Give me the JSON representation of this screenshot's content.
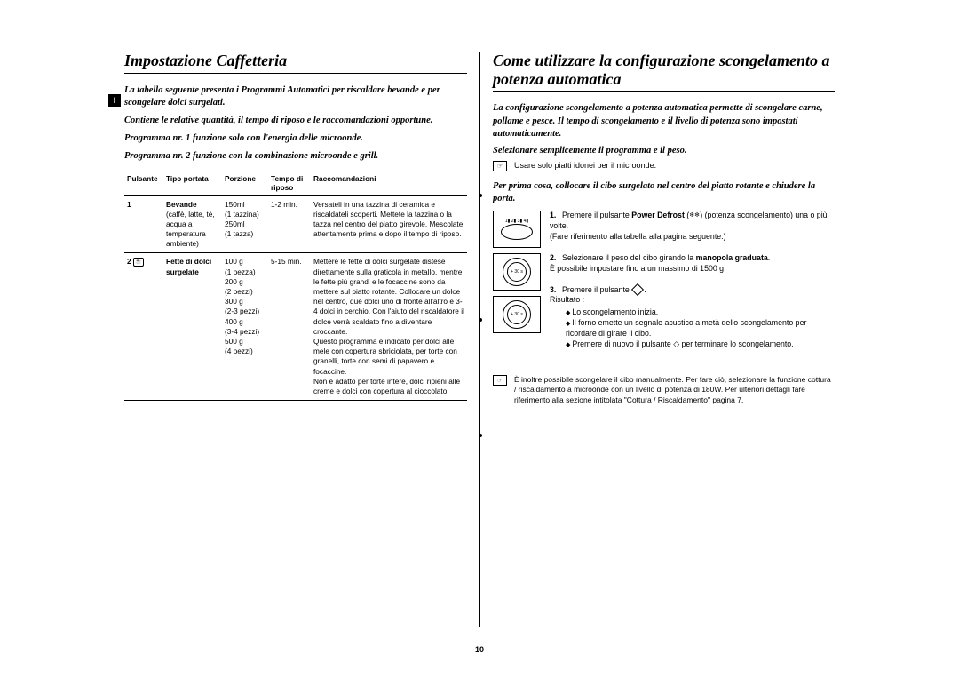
{
  "pageNumber": "10",
  "langTab": "I",
  "left": {
    "title": "Impostazione Caffetteria",
    "intro1": "La tabella seguente presenta i Programmi Automatici per riscaldare bevande e per scongelare dolci surgelati.",
    "intro2": "Contiene le relative quantità, il tempo di riposo e le raccomandazioni opportune.",
    "intro3": "Programma nr. 1 funzione solo con l'energia delle microonde.",
    "intro4": "Programma nr. 2 funzione con la combinazione microonde e grill.",
    "headers": {
      "pulsante": "Pulsante",
      "tipo": "Tipo portata",
      "porzione": "Porzione",
      "tempo": "Tempo di riposo",
      "racc": "Raccomandazioni"
    },
    "rows": [
      {
        "pulsante": "1",
        "tipo_bold": "Bevande",
        "tipo": "(caffè, latte, tè, acqua a temperatura ambiente)",
        "porzione": "150ml\n(1 tazzina)\n250ml\n(1 tazza)",
        "tempo": "1-2 min.",
        "racc": "Versateli in una tazzina di ceramica e riscaldateli scoperti. Mettete la tazzina o la tazza nel centro del piatto girevole. Mescolate attentamente prima e dopo il tempo di riposo."
      },
      {
        "pulsante": "2",
        "tipo_bold": "Fette di dolci surgelate",
        "tipo": "",
        "porzione": "100 g\n(1 pezza)\n200 g\n(2 pezzi)\n300 g\n(2-3 pezzi)\n400 g\n(3-4 pezzi)\n500 g\n(4 pezzi)",
        "tempo": "5-15 min.",
        "racc": "Mettere le fette di dolci surgelate distese direttamente sulla graticola in metallo, mentre le fette più grandi e le focaccine sono da mettere sul piatto rotante. Collocare un dolce nel centro, due dolci uno di fronte all'altro e 3-4 dolci in cerchio. Con l'aiuto del riscaldatore il dolce verrà scaldato fino a diventare croccante.\nQuesto programma è indicato per dolci alle mele con copertura sbriciolata, per torte con granelli, torte con semi di papavero e focaccine.\nNon è adatto per torte intere, dolci ripieni alle creme e dolci con copertura al cioccolato."
      }
    ]
  },
  "right": {
    "title": "Come utilizzare la configurazione scongelamento a potenza automatica",
    "intro1": "La configurazione scongelamento a potenza automatica permette di scongelare carne, pollame e pesce. Il tempo di scongelamento e il livello di potenza sono impostati automaticamente.",
    "intro2": "Selezionare semplicemente il programma e il peso.",
    "noteIcon": "☞",
    "noteText": "Usare solo piatti idonei per il microonde.",
    "intro3": "Per prima cosa, collocare il cibo surgelato nel centro del piatto rotante e chiudere la porta.",
    "steps": [
      {
        "num": "1.",
        "textBefore": "Premere il pulsante ",
        "bold": "Power Defrost",
        "textAfter": " (potenza scongelamento) una o più volte.\n(Fare riferimento alla tabella alla pagina seguente.)"
      },
      {
        "num": "2.",
        "textBefore": "Selezionare il peso del cibo girando la ",
        "bold": "manopola graduata",
        "textAfter": ".\nÈ possibile impostare fino a un massimo di 1500 g."
      },
      {
        "num": "3.",
        "textBefore": "Premere il pulsante ",
        "bold": "",
        "textAfter": ".\nRisultato :",
        "bullets": [
          "Lo scongelamento inizia.",
          "Il forno emette un segnale acustico a metà dello scongelamento per ricordare di girare il cibo.",
          "Premere di nuovo il pulsante ◇ per terminare lo scongelamento."
        ]
      }
    ],
    "finalNote": "È inoltre possibile scongelare il cibo manualmente. Per fare ciò, selezionare la funzione cottura / riscaldamento a microonde con un livello di potenza di 180W. Per ulteriori dettagli fare riferimento alla sezione intitolata \"Cottura / Riscaldamento\" pagina 7."
  }
}
